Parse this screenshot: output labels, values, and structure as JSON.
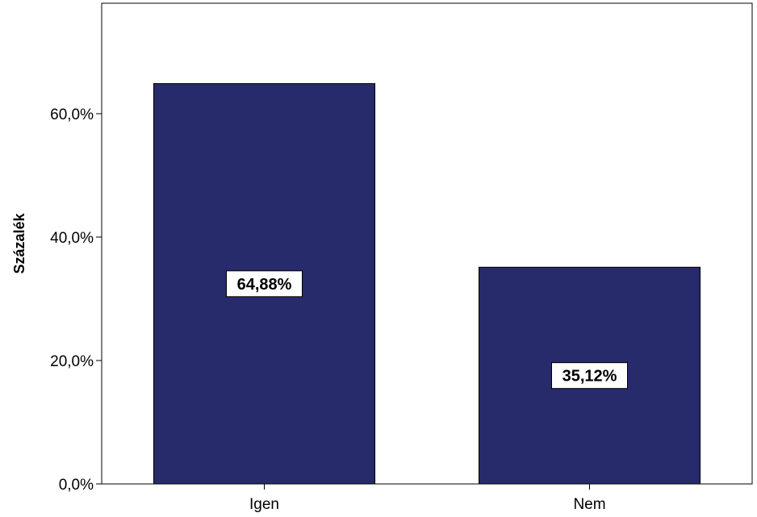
{
  "chart_data": {
    "type": "bar",
    "categories": [
      "Igen",
      "Nem"
    ],
    "values": [
      64.88,
      35.12
    ],
    "data_labels": [
      "64,88%",
      "35,12%"
    ],
    "title": "",
    "xlabel": "",
    "ylabel": "Százalék",
    "ylim": [
      0,
      77.9
    ],
    "yticks": [
      0,
      20,
      40,
      60
    ],
    "ytick_labels": [
      "0,0%",
      "20,0%",
      "40,0%",
      "60,0%"
    ],
    "bar_color": "#272a6b",
    "grid": false,
    "legend": "none"
  }
}
